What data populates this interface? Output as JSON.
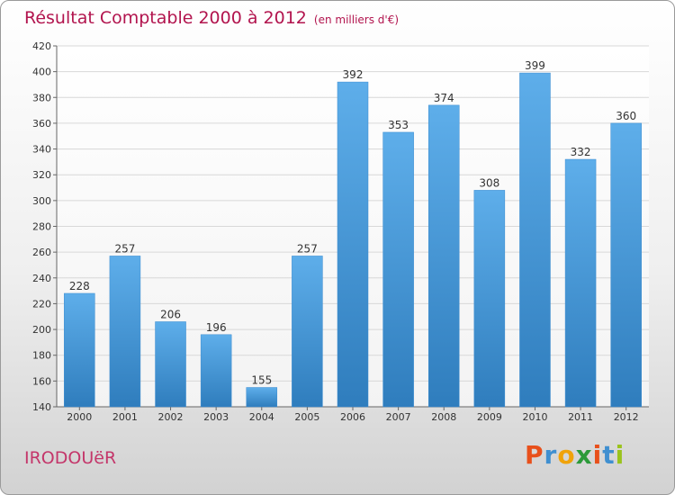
{
  "header": {
    "title": "Résultat Comptable 2000 à 2012",
    "subtitle": "(en milliers d'€)"
  },
  "footer": {
    "commune": "IRODOUëR",
    "logo_text": "Proxiti",
    "logo_colors": [
      "#e8501b",
      "#3f8fd0",
      "#f0a30a",
      "#2c9a3a",
      "#e8501b",
      "#3f8fd0",
      "#9ac31c"
    ]
  },
  "chart_data": {
    "type": "bar",
    "title": "Résultat Comptable 2000 à 2012",
    "unit": "en milliers d'€",
    "categories": [
      "2000",
      "2001",
      "2002",
      "2003",
      "2004",
      "2005",
      "2006",
      "2007",
      "2008",
      "2009",
      "2010",
      "2011",
      "2012"
    ],
    "values": [
      228,
      257,
      206,
      196,
      155,
      257,
      392,
      353,
      374,
      308,
      399,
      332,
      360
    ],
    "ylim": [
      140,
      420
    ],
    "yticks": [
      140,
      160,
      180,
      200,
      220,
      240,
      260,
      280,
      300,
      320,
      340,
      360,
      380,
      400,
      420
    ],
    "grid": true,
    "bar_color": "#4f9fe0",
    "grid_color": "#d8d8d8"
  }
}
